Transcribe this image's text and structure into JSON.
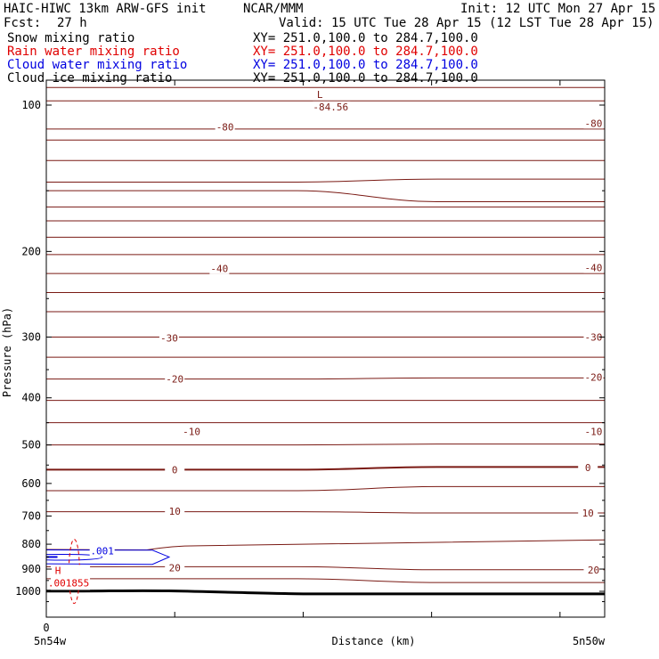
{
  "header": {
    "model_title": "HAIC-HIWC 13km ARW-GFS init",
    "org": "NCAR/MMM",
    "init": "Init: 12 UTC Mon 27 Apr 15",
    "fcst_label": "Fcst:",
    "fcst_value": "27 h",
    "valid": "Valid: 15 UTC Tue 28 Apr 15 (12 LST Tue 28 Apr 15)"
  },
  "legend": [
    {
      "name": "Snow mixing ratio",
      "color": "#000000",
      "xy": "XY= 251.0,100.0 to 284.7,100.0"
    },
    {
      "name": "Rain water mixing ratio",
      "color": "#e00000",
      "xy": "XY= 251.0,100.0 to 284.7,100.0"
    },
    {
      "name": "Cloud water mixing ratio",
      "color": "#0000e0",
      "xy": "XY= 251.0,100.0 to 284.7,100.0"
    },
    {
      "name": "Cloud ice mixing ratio",
      "color": "#000000",
      "xy": "XY= 251.0,100.0 to 284.7,100.0"
    }
  ],
  "chart_data": {
    "type": "cross-section contour",
    "xlabel": "Distance (km)",
    "ylabel": "Pressure (hPa)",
    "x_ticks": [
      {
        "x": 0,
        "label": "0"
      }
    ],
    "x_end_labels": [
      "5n54w",
      "5n50w"
    ],
    "y_ticks": [
      100,
      200,
      300,
      400,
      500,
      600,
      700,
      800,
      900,
      1000
    ],
    "ylim": [
      1050,
      70
    ],
    "colors": {
      "temperature": "#7a1a14",
      "rain": "#e00000",
      "cloud_water": "#0000e0",
      "terrain": "#000000"
    },
    "temperature_isotherms_C": [
      -80,
      -40,
      -30,
      -20,
      -10,
      0,
      10,
      20
    ],
    "temperature_labels": [
      {
        "text": "-80",
        "x": 0.32,
        "p": 111
      },
      {
        "text": "-80",
        "x": 0.98,
        "p": 109
      },
      {
        "text": "-40",
        "x": 0.31,
        "p": 217
      },
      {
        "text": "-40",
        "x": 0.98,
        "p": 216
      },
      {
        "text": "-30",
        "x": 0.22,
        "p": 301
      },
      {
        "text": "-30",
        "x": 0.98,
        "p": 300
      },
      {
        "text": "-20",
        "x": 0.23,
        "p": 366
      },
      {
        "text": "-20",
        "x": 0.98,
        "p": 363
      },
      {
        "text": "-10",
        "x": 0.26,
        "p": 469
      },
      {
        "text": "-10",
        "x": 0.98,
        "p": 469
      },
      {
        "text": "0",
        "x": 0.23,
        "p": 562
      },
      {
        "text": "0",
        "x": 0.97,
        "p": 556
      },
      {
        "text": "10",
        "x": 0.23,
        "p": 684
      },
      {
        "text": "10",
        "x": 0.97,
        "p": 690
      },
      {
        "text": "20",
        "x": 0.23,
        "p": 895
      },
      {
        "text": "20",
        "x": 0.98,
        "p": 903
      }
    ],
    "low_marker": {
      "letter": "L",
      "value": "-84.56",
      "x": 0.49,
      "p": 95
    },
    "high_marker": {
      "letter": "H",
      "value": ".001855",
      "x": 0.04,
      "p": 905
    },
    "cloud_water_label": {
      "text": ".001",
      "x": 0.1,
      "p": 826
    },
    "temperature_lines": [
      {
        "p_left": 92,
        "p_right": 92
      },
      {
        "p_left": 98,
        "p_right": 98
      },
      {
        "p_left": 112,
        "p_right": 112
      },
      {
        "p_left": 118,
        "p_right": 118
      },
      {
        "p_left": 130,
        "p_right": 130
      },
      {
        "p_left": 144,
        "p_right": 142
      },
      {
        "p_left": 150,
        "p_right": 158
      },
      {
        "p_left": 162,
        "p_right": 162
      },
      {
        "p_left": 173,
        "p_right": 173
      },
      {
        "p_left": 187,
        "p_right": 187
      },
      {
        "p_left": 203,
        "p_right": 203
      },
      {
        "p_left": 222,
        "p_right": 222
      },
      {
        "p_left": 243,
        "p_right": 243
      },
      {
        "p_left": 266,
        "p_right": 266
      },
      {
        "p_left": 300,
        "p_right": 300
      },
      {
        "p_left": 330,
        "p_right": 330
      },
      {
        "p_left": 366,
        "p_right": 364
      },
      {
        "p_left": 405,
        "p_right": 405
      },
      {
        "p_left": 450,
        "p_right": 450
      },
      {
        "p_left": 500,
        "p_right": 498
      },
      {
        "p_left": 621,
        "p_right": 609
      },
      {
        "p_left": 686,
        "p_right": 690
      },
      {
        "p_left": 890,
        "p_right": 903
      },
      {
        "p_left": 942,
        "p_right": 959
      }
    ],
    "freezing_line": {
      "p_left": 562,
      "p_right": 555
    },
    "warm_line_800": {
      "p_left": 838,
      "p_right": 784
    },
    "terrain_surface": {
      "p_left": 999,
      "p_right": 1012
    }
  }
}
